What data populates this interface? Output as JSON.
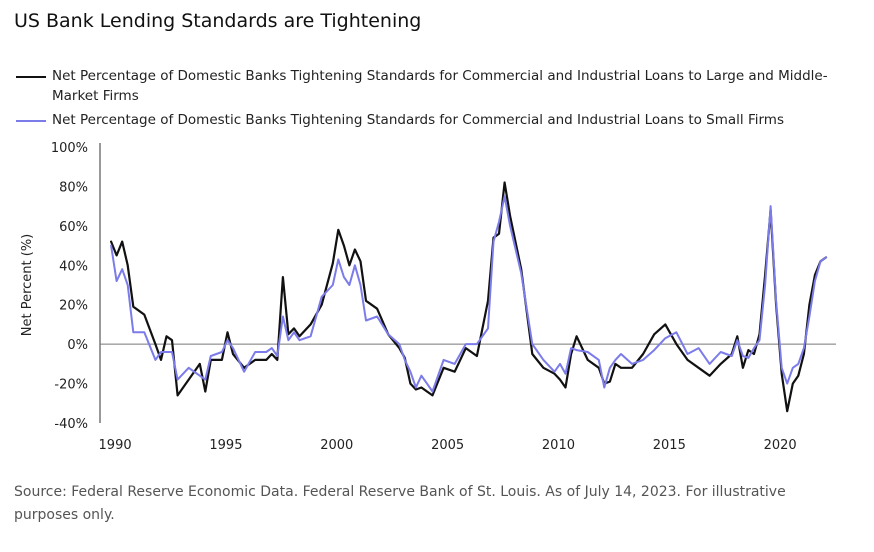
{
  "chart_data": {
    "type": "line",
    "title": "US Bank Lending Standards are Tightening",
    "ylabel": "Net Percent (%)",
    "xlabel": "",
    "ylim": [
      -40,
      100
    ],
    "xlim": [
      1989.5,
      2022.7
    ],
    "y_ticks": [
      {
        "value": 100,
        "label": "100%"
      },
      {
        "value": 80,
        "label": "80%"
      },
      {
        "value": 60,
        "label": "60%"
      },
      {
        "value": 40,
        "label": "40%"
      },
      {
        "value": 20,
        "label": "20%"
      },
      {
        "value": 0,
        "label": "0%"
      },
      {
        "value": -20,
        "label": "-20%"
      },
      {
        "value": -40,
        "label": "-40%"
      }
    ],
    "x_ticks": [
      {
        "value": 1990,
        "label": "1990"
      },
      {
        "value": 1995,
        "label": "1995"
      },
      {
        "value": 2000,
        "label": "2000"
      },
      {
        "value": 2005,
        "label": "2005"
      },
      {
        "value": 2010,
        "label": "2010"
      },
      {
        "value": 2015,
        "label": "2015"
      },
      {
        "value": 2020,
        "label": "2020"
      }
    ],
    "series": [
      {
        "name": "Net Percentage of Domestic Banks Tightening Standards for Commercial and Industrial Loans to Large and Middle-Market Firms",
        "color": "#111111",
        "x": [
          1990.0,
          1990.25,
          1990.5,
          1990.75,
          1991.0,
          1991.5,
          1992.0,
          1992.25,
          1992.5,
          1992.75,
          1993.0,
          1993.5,
          1994.0,
          1994.25,
          1994.5,
          1995.0,
          1995.25,
          1995.5,
          1996.0,
          1996.5,
          1997.0,
          1997.25,
          1997.5,
          1997.75,
          1998.0,
          1998.25,
          1998.5,
          1999.0,
          1999.5,
          2000.0,
          2000.25,
          2000.5,
          2000.75,
          2001.0,
          2001.25,
          2001.5,
          2002.0,
          2002.5,
          2003.0,
          2003.25,
          2003.5,
          2003.75,
          2004.0,
          2004.25,
          2004.5,
          2005.0,
          2005.5,
          2006.0,
          2006.5,
          2007.0,
          2007.25,
          2007.5,
          2007.75,
          2008.0,
          2008.5,
          2009.0,
          2009.5,
          2010.0,
          2010.25,
          2010.5,
          2010.75,
          2011.0,
          2011.5,
          2012.0,
          2012.25,
          2012.5,
          2012.75,
          2013.0,
          2013.5,
          2014.0,
          2014.5,
          2015.0,
          2015.5,
          2016.0,
          2016.5,
          2017.0,
          2017.5,
          2018.0,
          2018.25,
          2018.5,
          2018.75,
          2019.0,
          2019.25,
          2019.5,
          2019.75,
          2020.0,
          2020.25,
          2020.5,
          2020.75,
          2021.0,
          2021.25,
          2021.5,
          2021.75,
          2022.0,
          2022.25
        ],
        "values": [
          52,
          45,
          52,
          40,
          19,
          15,
          0,
          -8,
          4,
          2,
          -26,
          -18,
          -10,
          -24,
          -8,
          -8,
          6,
          -5,
          -12,
          -8,
          -8,
          -5,
          -8,
          34,
          5,
          8,
          4,
          10,
          20,
          41,
          58,
          50,
          40,
          48,
          42,
          22,
          18,
          5,
          -2,
          -7,
          -20,
          -23,
          -22,
          -24,
          -26,
          -12,
          -14,
          -2,
          -6,
          22,
          54,
          56,
          82,
          65,
          38,
          -5,
          -12,
          -15,
          -18,
          -22,
          -5,
          4,
          -8,
          -12,
          -20,
          -19,
          -10,
          -12,
          -12,
          -5,
          5,
          10,
          0,
          -8,
          -12,
          -16,
          -10,
          -5,
          4,
          -12,
          -3,
          -5,
          5,
          35,
          68,
          20,
          -15,
          -34,
          -20,
          -16,
          -5,
          20,
          35,
          42,
          44
        ]
      },
      {
        "name": "Net Percentage of Domestic Banks Tightening Standards for Commercial and Industrial Loans to Small Firms",
        "color": "#7b7bea",
        "x": [
          1990.0,
          1990.25,
          1990.5,
          1990.75,
          1991.0,
          1991.5,
          1992.0,
          1992.25,
          1992.5,
          1992.75,
          1993.0,
          1993.5,
          1994.0,
          1994.25,
          1994.5,
          1995.0,
          1995.25,
          1995.5,
          1996.0,
          1996.5,
          1997.0,
          1997.25,
          1997.5,
          1997.75,
          1998.0,
          1998.25,
          1998.5,
          1999.0,
          1999.5,
          2000.0,
          2000.25,
          2000.5,
          2000.75,
          2001.0,
          2001.25,
          2001.5,
          2002.0,
          2002.5,
          2003.0,
          2003.25,
          2003.5,
          2003.75,
          2004.0,
          2004.25,
          2004.5,
          2005.0,
          2005.5,
          2006.0,
          2006.5,
          2007.0,
          2007.25,
          2007.5,
          2007.75,
          2008.0,
          2008.5,
          2009.0,
          2009.5,
          2010.0,
          2010.25,
          2010.5,
          2010.75,
          2011.0,
          2011.5,
          2012.0,
          2012.25,
          2012.5,
          2012.75,
          2013.0,
          2013.5,
          2014.0,
          2014.5,
          2015.0,
          2015.5,
          2016.0,
          2016.5,
          2017.0,
          2017.5,
          2018.0,
          2018.25,
          2018.5,
          2018.75,
          2019.0,
          2019.25,
          2019.5,
          2019.75,
          2020.0,
          2020.25,
          2020.5,
          2020.75,
          2021.0,
          2021.25,
          2021.5,
          2021.75,
          2022.0,
          2022.25
        ],
        "values": [
          50,
          32,
          38,
          30,
          6,
          6,
          -8,
          -4,
          -4,
          -4,
          -18,
          -12,
          -16,
          -18,
          -6,
          -4,
          2,
          -2,
          -14,
          -4,
          -4,
          -2,
          -6,
          14,
          2,
          6,
          2,
          4,
          24,
          30,
          43,
          34,
          30,
          40,
          30,
          12,
          14,
          5,
          0,
          -8,
          -14,
          -22,
          -16,
          -20,
          -24,
          -8,
          -10,
          0,
          0,
          8,
          52,
          62,
          75,
          60,
          36,
          0,
          -8,
          -14,
          -10,
          -15,
          -2,
          -3,
          -4,
          -8,
          -22,
          -12,
          -8,
          -5,
          -10,
          -8,
          -3,
          3,
          6,
          -5,
          -2,
          -10,
          -4,
          -6,
          2,
          -6,
          -7,
          -2,
          2,
          30,
          70,
          22,
          -12,
          -20,
          -12,
          -10,
          -2,
          14,
          32,
          42,
          44
        ]
      }
    ]
  },
  "legend": {
    "items": [
      {
        "label": "Net Percentage of Domestic Banks Tightening Standards for Commercial and Industrial Loans to Large and Middle-Market Firms",
        "color": "#111111"
      },
      {
        "label": "Net Percentage of Domestic Banks Tightening Standards for Commercial and Industrial Loans to Small Firms",
        "color": "#7b7bea"
      }
    ]
  },
  "source": "Source: Federal Reserve Economic Data. Federal Reserve Bank of St. Louis. As of July 14, 2023. For illustrative purposes only."
}
